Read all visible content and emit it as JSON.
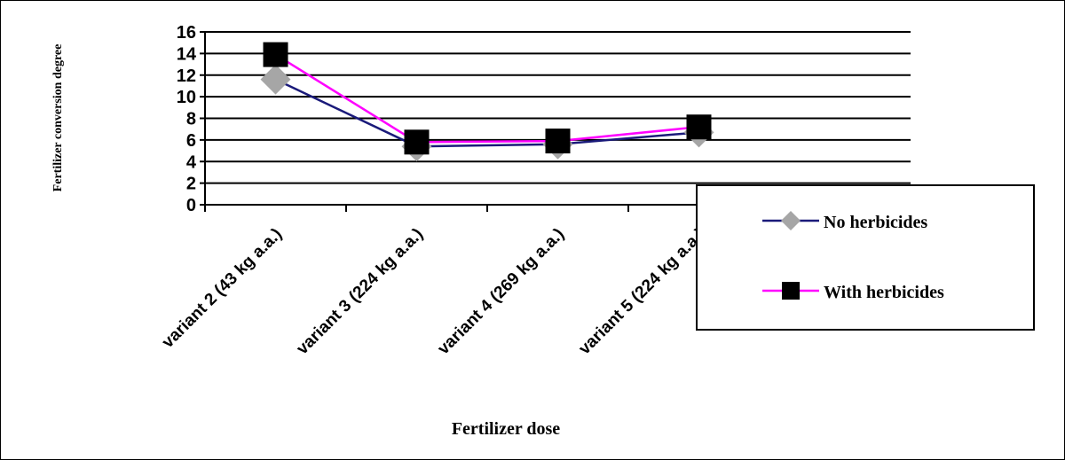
{
  "chart_data": {
    "type": "line",
    "title": "",
    "xlabel": "Fertilizer dose",
    "ylabel": "Fertilizer conversion degree",
    "ylim": [
      0,
      16
    ],
    "yticks": [
      0,
      2,
      4,
      6,
      8,
      10,
      12,
      14,
      16
    ],
    "grid": true,
    "legend_position": "right",
    "categories": [
      "variant 2 (43 kg a.a.)",
      "variant 3 (224 kg a.a.)",
      "variant 4 (269 kg a.a.)",
      "variant 5 (224 kg a.a.)"
    ],
    "series": [
      {
        "name": "No herbicides",
        "marker": "diamond",
        "line_color": "#1a1a7a",
        "marker_color": "#a6a6a6",
        "values": [
          11.6,
          5.4,
          5.6,
          6.7
        ]
      },
      {
        "name": "With herbicides",
        "marker": "square",
        "line_color": "#ff00ff",
        "marker_color": "#000000",
        "values": [
          13.9,
          5.8,
          5.9,
          7.2
        ]
      }
    ]
  }
}
